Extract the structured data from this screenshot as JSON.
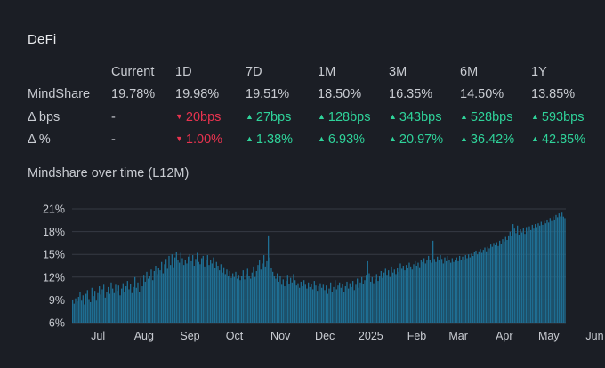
{
  "title": "DeFi",
  "table": {
    "headers": [
      "",
      "Current",
      "1D",
      "7D",
      "1M",
      "3M",
      "6M",
      "1Y"
    ],
    "rows": [
      {
        "label": "MindShare",
        "cells": [
          {
            "text": "19.78%",
            "dir": ""
          },
          {
            "text": "19.98%",
            "dir": ""
          },
          {
            "text": "19.51%",
            "dir": ""
          },
          {
            "text": "18.50%",
            "dir": ""
          },
          {
            "text": "16.35%",
            "dir": ""
          },
          {
            "text": "14.50%",
            "dir": ""
          },
          {
            "text": "13.85%",
            "dir": ""
          }
        ]
      },
      {
        "label": "Δ bps",
        "cells": [
          {
            "text": "-",
            "dir": ""
          },
          {
            "text": "20bps",
            "dir": "down"
          },
          {
            "text": "27bps",
            "dir": "up"
          },
          {
            "text": "128bps",
            "dir": "up"
          },
          {
            "text": "343bps",
            "dir": "up"
          },
          {
            "text": "528bps",
            "dir": "up"
          },
          {
            "text": "593bps",
            "dir": "up"
          }
        ]
      },
      {
        "label": "Δ %",
        "cells": [
          {
            "text": "-",
            "dir": ""
          },
          {
            "text": "1.00%",
            "dir": "down"
          },
          {
            "text": "1.38%",
            "dir": "up"
          },
          {
            "text": "6.93%",
            "dir": "up"
          },
          {
            "text": "20.97%",
            "dir": "up"
          },
          {
            "text": "36.42%",
            "dir": "up"
          },
          {
            "text": "42.85%",
            "dir": "up"
          }
        ]
      }
    ]
  },
  "colors": {
    "up": "#2fd39a",
    "down": "#e8334f",
    "bar": "#1f6f94",
    "bar_edge": "#2b8ab5",
    "text": "#c9ccd2"
  },
  "chart_data": {
    "type": "bar",
    "title": "Mindshare over time (L12M)",
    "xlabel": "",
    "ylabel": "",
    "ylim": [
      6,
      21
    ],
    "yticks": [
      "6%",
      "9%",
      "12%",
      "15%",
      "18%",
      "21%"
    ],
    "ytick_values": [
      6,
      9,
      12,
      15,
      18,
      21
    ],
    "month_labels": [
      "Jul",
      "Aug",
      "Sep",
      "Oct",
      "Nov",
      "Dec",
      "2025",
      "Feb",
      "Mar",
      "Apr",
      "May",
      "Jun"
    ],
    "month_label_days": [
      17,
      48,
      79,
      109,
      140,
      170,
      201,
      232,
      260,
      291,
      321,
      352
    ],
    "grid": true,
    "start_date": "2024-06-13",
    "values": [
      9.0,
      8.5,
      9.2,
      8.8,
      9.4,
      10.0,
      8.9,
      9.6,
      8.4,
      9.8,
      10.3,
      9.1,
      8.7,
      10.6,
      9.5,
      10.2,
      8.9,
      9.9,
      10.8,
      9.7,
      10.4,
      11.0,
      9.3,
      10.1,
      10.7,
      9.8,
      11.3,
      10.5,
      9.9,
      11.0,
      10.2,
      10.9,
      9.6,
      10.5,
      11.2,
      10.0,
      10.8,
      11.5,
      10.4,
      11.1,
      9.9,
      10.7,
      12.0,
      10.6,
      11.3,
      10.1,
      11.9,
      10.8,
      12.3,
      11.4,
      12.7,
      11.8,
      12.2,
      13.0,
      11.6,
      12.8,
      13.5,
      12.4,
      13.2,
      12.9,
      14.0,
      12.5,
      13.7,
      14.4,
      13.1,
      14.8,
      13.6,
      15.0,
      13.3,
      14.6,
      15.3,
      14.2,
      13.9,
      15.2,
      14.5,
      13.6,
      14.3,
      13.8,
      14.7,
      15.0,
      14.1,
      14.9,
      13.5,
      14.4,
      15.2,
      14.0,
      13.7,
      14.5,
      14.8,
      13.4,
      14.2,
      14.9,
      13.6,
      14.3,
      13.8,
      14.6,
      13.2,
      14.0,
      13.5,
      12.9,
      13.7,
      12.6,
      13.3,
      12.4,
      13.0,
      12.2,
      12.8,
      11.9,
      12.5,
      12.0,
      12.7,
      11.8,
      12.3,
      11.6,
      12.1,
      12.9,
      11.7,
      12.4,
      13.1,
      12.2,
      11.8,
      12.6,
      13.4,
      12.0,
      12.8,
      13.6,
      14.2,
      13.0,
      13.8,
      14.9,
      13.4,
      14.1,
      17.5,
      14.6,
      13.2,
      12.7,
      12.1,
      11.8,
      12.5,
      11.4,
      12.2,
      11.0,
      11.7,
      10.8,
      11.5,
      12.3,
      11.1,
      11.9,
      11.3,
      12.4,
      11.6,
      10.9,
      11.2,
      10.6,
      11.4,
      10.8,
      11.6,
      11.0,
      10.5,
      11.3,
      10.7,
      11.1,
      10.4,
      11.5,
      10.9,
      10.2,
      10.8,
      11.2,
      10.6,
      11.0,
      10.3,
      10.9,
      9.8,
      10.5,
      11.3,
      10.1,
      10.7,
      11.6,
      10.4,
      10.9,
      11.3,
      10.6,
      11.1,
      10.0,
      10.8,
      11.4,
      10.5,
      11.2,
      10.7,
      11.5,
      10.3,
      11.0,
      11.8,
      10.6,
      11.3,
      12.0,
      11.1,
      11.6,
      12.3,
      14.1,
      12.5,
      11.4,
      12.0,
      11.2,
      11.7,
      12.4,
      11.5,
      12.1,
      12.8,
      11.9,
      12.6,
      13.1,
      12.3,
      12.9,
      12.0,
      13.4,
      12.6,
      13.0,
      12.4,
      13.2,
      12.7,
      13.8,
      13.1,
      13.5,
      12.9,
      13.6,
      13.2,
      13.9,
      13.4,
      13.0,
      13.7,
      14.1,
      13.5,
      13.9,
      13.3,
      14.3,
      14.0,
      14.5,
      13.8,
      14.2,
      14.8,
      14.3,
      13.9,
      16.8,
      14.4,
      14.0,
      14.7,
      14.2,
      14.9,
      14.4,
      13.8,
      14.6,
      14.1,
      14.8,
      14.3,
      13.9,
      14.5,
      14.0,
      14.2,
      14.6,
      14.1,
      14.8,
      14.3,
      14.7,
      14.2,
      14.9,
      14.5,
      15.0,
      14.6,
      15.1,
      14.8,
      15.3,
      15.5,
      15.0,
      15.4,
      15.7,
      15.2,
      15.6,
      15.9,
      15.4,
      16.0,
      15.8,
      16.3,
      16.0,
      16.5,
      16.2,
      16.6,
      16.1,
      16.8,
      16.4,
      17.0,
      16.7,
      17.3,
      16.9,
      17.5,
      18.0,
      17.4,
      19.0,
      18.4,
      17.8,
      18.8,
      17.6,
      18.3,
      17.9,
      18.5,
      17.7,
      18.6,
      18.0,
      18.7,
      18.2,
      18.9,
      18.4,
      19.0,
      18.6,
      19.1,
      18.8,
      19.3,
      18.9,
      19.4,
      19.1,
      19.6,
      19.2,
      19.8,
      19.4,
      20.0,
      19.6,
      20.2,
      19.9,
      20.4,
      20.0,
      20.5,
      19.98,
      19.78
    ]
  }
}
